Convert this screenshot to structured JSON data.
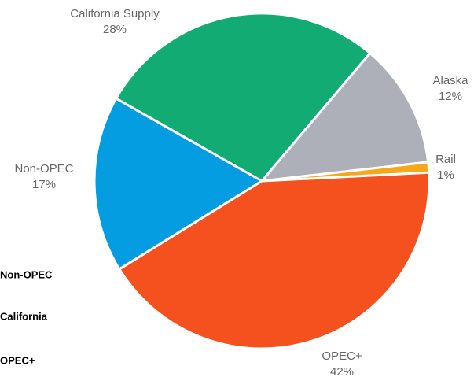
{
  "chart_data": {
    "type": "pie",
    "categories": [
      "California Supply",
      "Alaska",
      "Rail",
      "OPEC+",
      "Non-OPEC"
    ],
    "values": [
      28,
      12,
      1,
      42,
      17
    ],
    "value_labels": [
      "28%",
      "12%",
      "1%",
      "42%",
      "17%"
    ],
    "colors": [
      "#12ab74",
      "#adb0b8",
      "#f5a81c",
      "#f5511e",
      "#049de2"
    ],
    "legend": [
      "Non-OPEC",
      "California",
      "OPEC+"
    ]
  }
}
